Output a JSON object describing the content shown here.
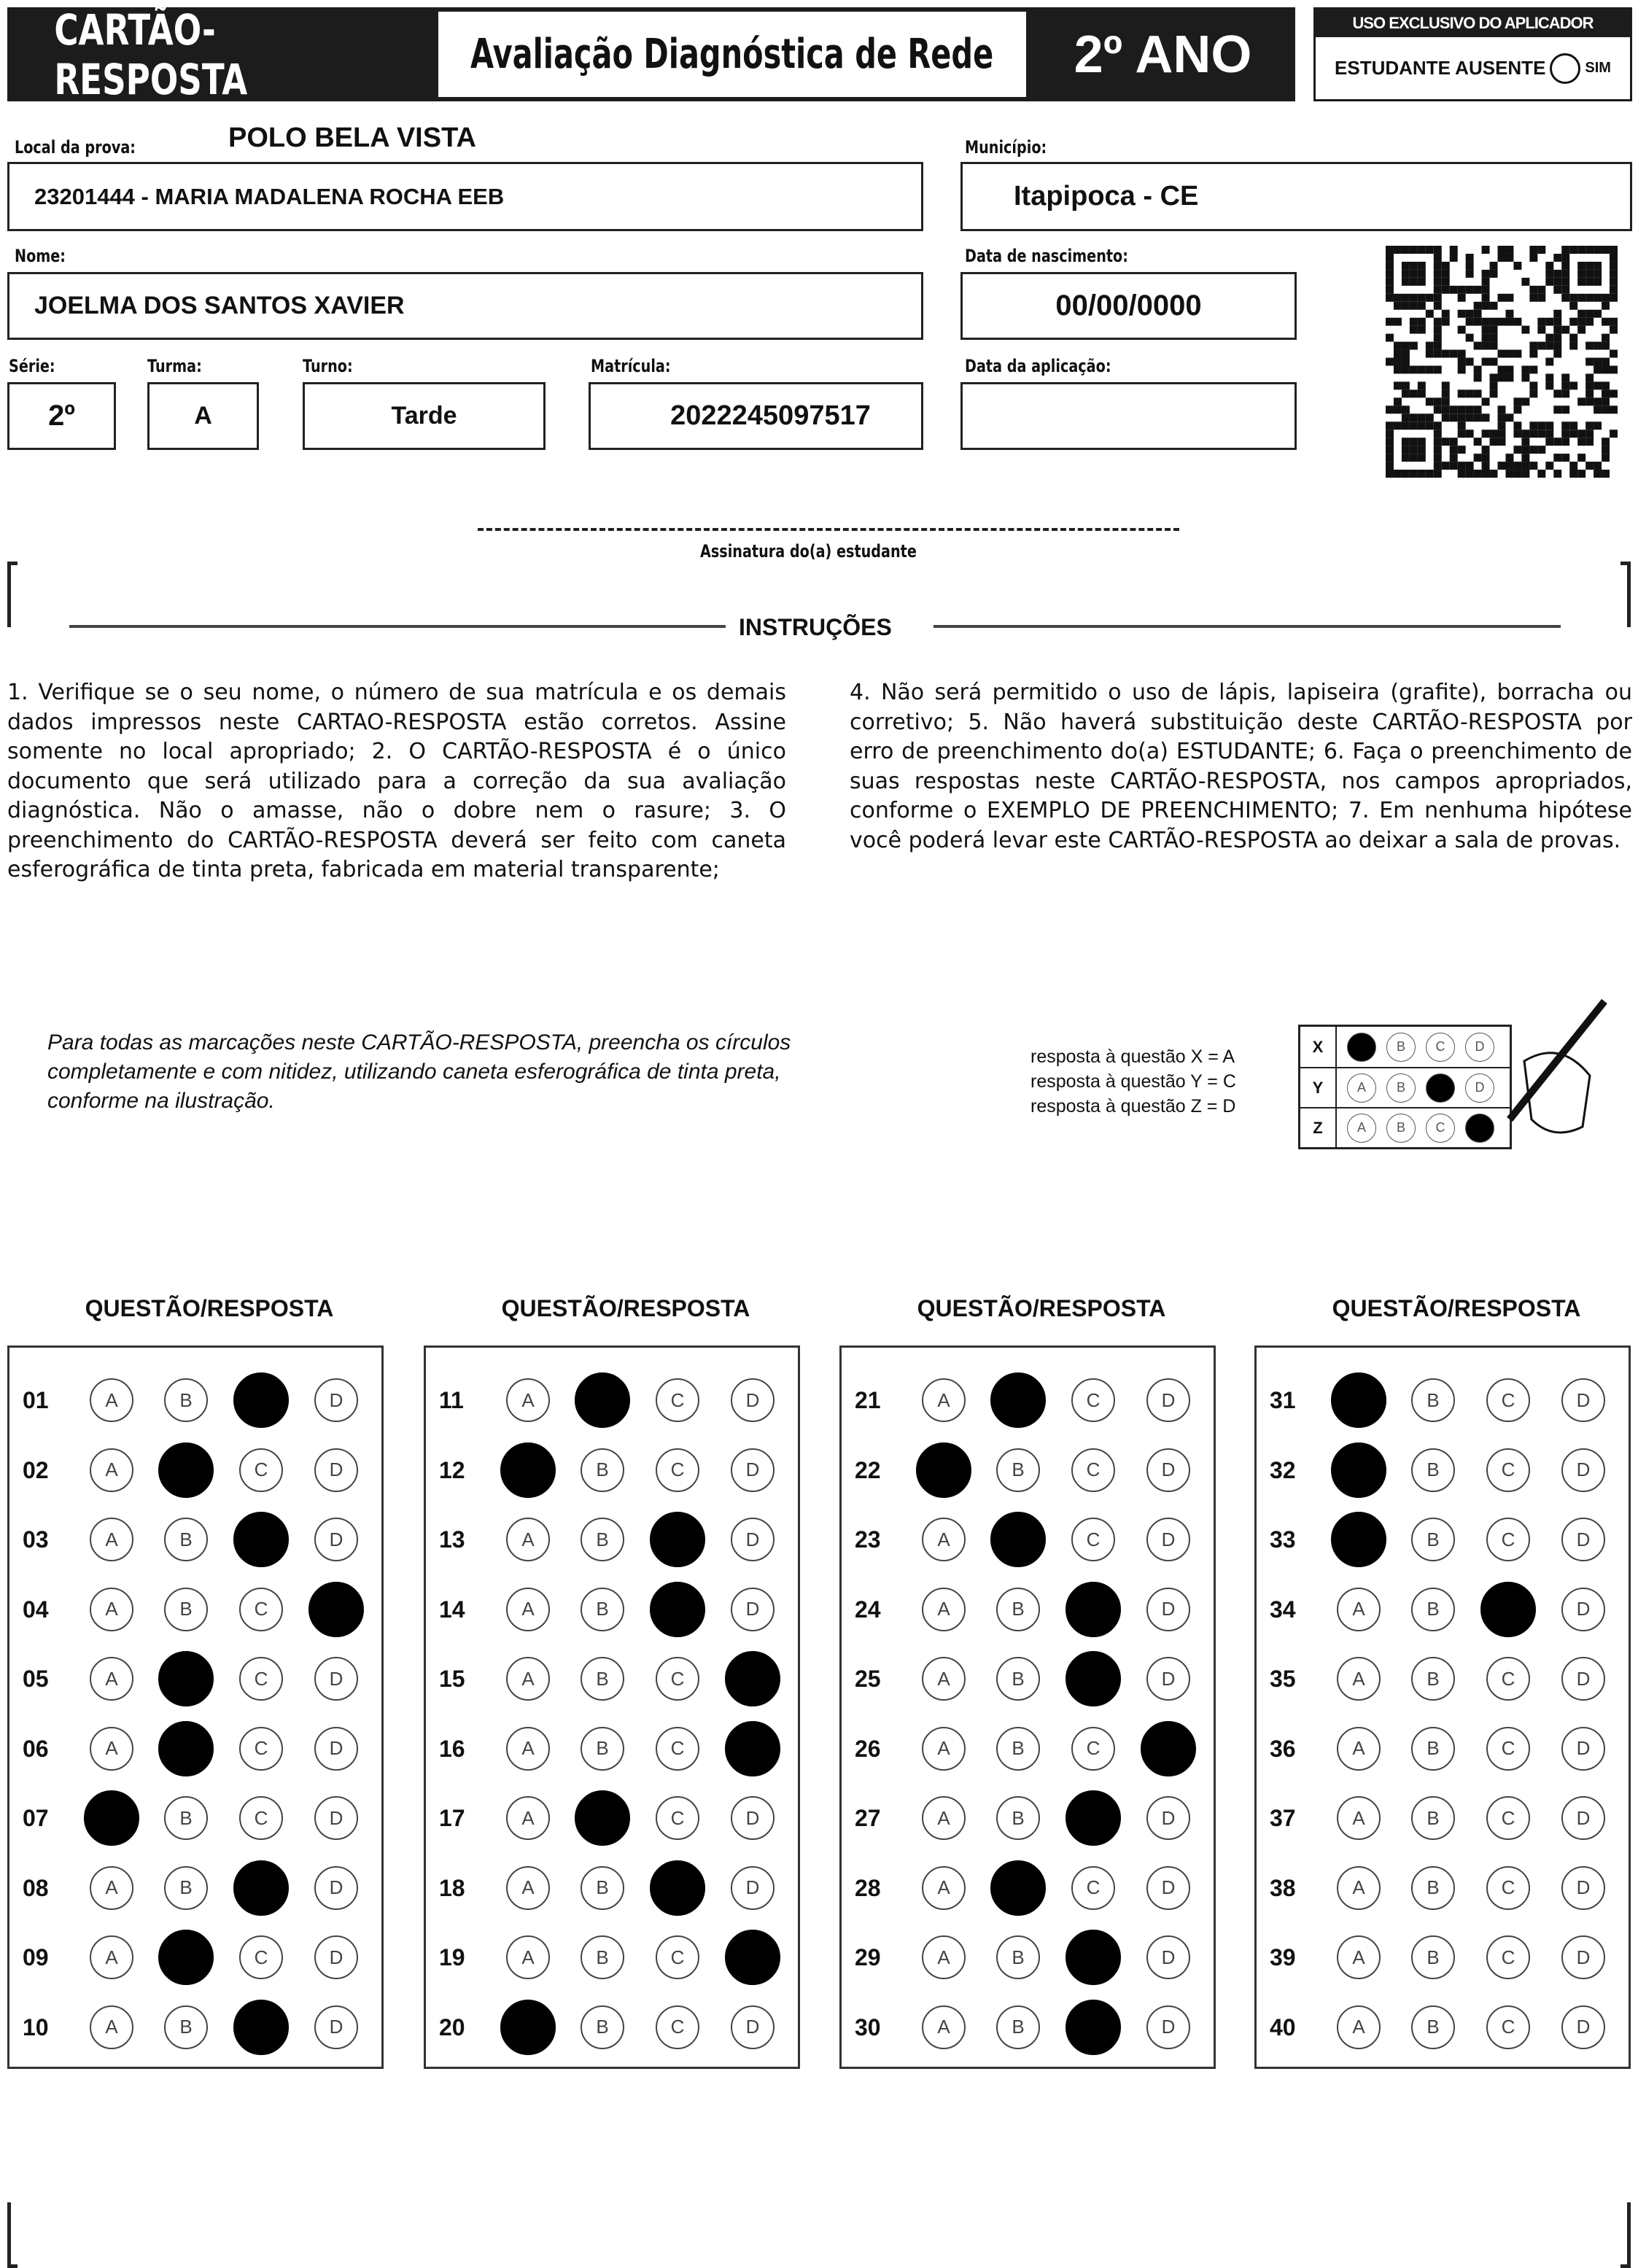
{
  "header": {
    "card_title": "CARTÃO-RESPOSTA",
    "exam_title": "Avaliação Diagnóstica de Rede",
    "grade": "2º ANO",
    "applicator_title": "USO EXCLUSIVO DO APLICADOR",
    "absent_label": "ESTUDANTE AUSENTE",
    "absent_option": "SIM"
  },
  "fields": {
    "local_label": "Local da prova:",
    "polo": "POLO BELA VISTA",
    "school": "23201444 - MARIA MADALENA ROCHA EEB",
    "municipio_label": "Município:",
    "municipio": "Itapipoca - CE",
    "nome_label": "Nome:",
    "nome": "JOELMA DOS SANTOS XAVIER",
    "nascimento_label": "Data de nascimento:",
    "nascimento": "00/00/0000",
    "serie_label": "Série:",
    "serie": "2º",
    "turma_label": "Turma:",
    "turma": "A",
    "turno_label": "Turno:",
    "turno": "Tarde",
    "matricula_label": "Matrícula:",
    "matricula": "2022245097517",
    "aplicacao_label": "Data da aplicação:",
    "aplicacao": ""
  },
  "signature_label": "Assinatura do(a) estudante",
  "instructions": {
    "title": "INSTRUÇÕES",
    "left": "1. Verifique se o seu nome, o número de sua matrícula e os demais dados impressos neste CARTAO-RESPOSTA estão corretos. Assine somente no local apropriado; 2. O CARTÃO-RESPOSTA é o único documento que será utilizado para a correção da sua avaliação diagnóstica. Não o amasse, não o dobre nem o rasure; 3. O preenchimento do CARTÃO-RESPOSTA deverá ser feito com caneta esferográfica de tinta preta, fabricada em material transparente;",
    "right": "4. Não será permitido o uso de lápis, lapiseira (grafite), borracha ou corretivo; 5. Não haverá substituição deste CARTÃO-RESPOSTA por erro de preenchimento do(a) ESTUDANTE; 6. Faça o preenchimento de suas respostas neste CARTÃO-RESPOSTA, nos campos apropriados, conforme o EXEMPLO DE PREENCHIMENTO; 7. Em nenhuma hipótese você poderá levar este CARTÃO-RESPOSTA ao deixar a sala de provas."
  },
  "example": {
    "text": "Para todas as marcações neste CARTÃO-RESPOSTA, preencha os círculos completamente e com nitidez, utilizando caneta esferográfica de tinta preta, conforme na ilustração.",
    "legend": [
      "resposta à questão X = A",
      "resposta à questão Y = C",
      "resposta à questão Z = D"
    ],
    "rows": [
      {
        "q": "X",
        "answer": "A"
      },
      {
        "q": "Y",
        "answer": "C"
      },
      {
        "q": "Z",
        "answer": "D"
      }
    ]
  },
  "options": [
    "A",
    "B",
    "C",
    "D"
  ],
  "column_header": "QUESTÃO/RESPOSTA",
  "answers": [
    {
      "q": "01",
      "a": "C"
    },
    {
      "q": "02",
      "a": "B"
    },
    {
      "q": "03",
      "a": "C"
    },
    {
      "q": "04",
      "a": "D"
    },
    {
      "q": "05",
      "a": "B"
    },
    {
      "q": "06",
      "a": "B"
    },
    {
      "q": "07",
      "a": "A"
    },
    {
      "q": "08",
      "a": "C"
    },
    {
      "q": "09",
      "a": "B"
    },
    {
      "q": "10",
      "a": "C"
    },
    {
      "q": "11",
      "a": "B"
    },
    {
      "q": "12",
      "a": "A"
    },
    {
      "q": "13",
      "a": "C"
    },
    {
      "q": "14",
      "a": "C"
    },
    {
      "q": "15",
      "a": "D"
    },
    {
      "q": "16",
      "a": "D"
    },
    {
      "q": "17",
      "a": "B"
    },
    {
      "q": "18",
      "a": "C"
    },
    {
      "q": "19",
      "a": "D"
    },
    {
      "q": "20",
      "a": "A"
    },
    {
      "q": "21",
      "a": "B"
    },
    {
      "q": "22",
      "a": "A"
    },
    {
      "q": "23",
      "a": "B"
    },
    {
      "q": "24",
      "a": "C"
    },
    {
      "q": "25",
      "a": "C"
    },
    {
      "q": "26",
      "a": "D"
    },
    {
      "q": "27",
      "a": "C"
    },
    {
      "q": "28",
      "a": "B"
    },
    {
      "q": "29",
      "a": "C"
    },
    {
      "q": "30",
      "a": "C"
    },
    {
      "q": "31",
      "a": "A"
    },
    {
      "q": "32",
      "a": "A"
    },
    {
      "q": "33",
      "a": "A"
    },
    {
      "q": "34",
      "a": "C"
    },
    {
      "q": "35",
      "a": ""
    },
    {
      "q": "36",
      "a": ""
    },
    {
      "q": "37",
      "a": ""
    },
    {
      "q": "38",
      "a": ""
    },
    {
      "q": "39",
      "a": ""
    },
    {
      "q": "40",
      "a": ""
    }
  ]
}
